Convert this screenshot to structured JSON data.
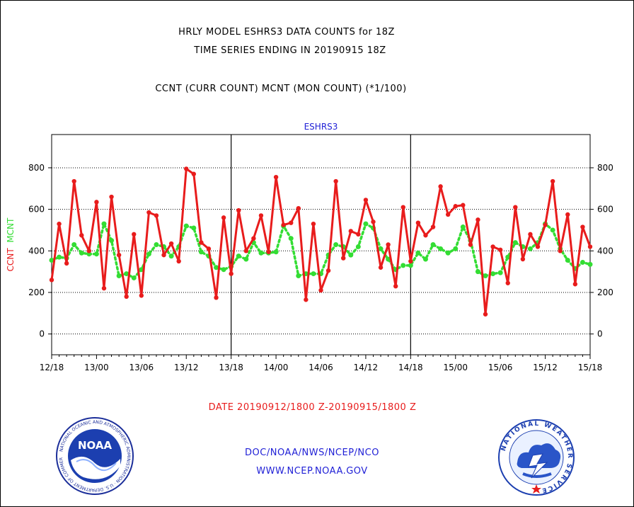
{
  "header": {
    "title_line1": "HRLY MODEL ESHRS3 DATA COUNTS for 18Z",
    "title_line2": "TIME SERIES ENDING IN 20190915 18Z",
    "subtitle": "CCNT (CURR COUNT) MCNT (MON COUNT) (*1/100)"
  },
  "chart_data": {
    "type": "line",
    "title": "ESHRS3",
    "ylabel_left": "CCNT",
    "ylabel_right": "MCNT",
    "xlabel": "DATE 20190912/1800 Z-20190915/1800 Z",
    "ylim": [
      -100,
      960
    ],
    "yticks": [
      0,
      200,
      400,
      600,
      800
    ],
    "xlim": [
      0,
      72
    ],
    "xticks": [
      {
        "x": 0,
        "label": "12/18"
      },
      {
        "x": 6,
        "label": "13/00"
      },
      {
        "x": 12,
        "label": "13/06"
      },
      {
        "x": 18,
        "label": "13/12"
      },
      {
        "x": 24,
        "label": "13/18"
      },
      {
        "x": 30,
        "label": "14/00"
      },
      {
        "x": 36,
        "label": "14/06"
      },
      {
        "x": 42,
        "label": "14/12"
      },
      {
        "x": 48,
        "label": "14/18"
      },
      {
        "x": 54,
        "label": "15/00"
      },
      {
        "x": 60,
        "label": "15/06"
      },
      {
        "x": 66,
        "label": "15/12"
      },
      {
        "x": 72,
        "label": "15/18"
      }
    ],
    "day_dividers": [
      24,
      48
    ],
    "series": [
      {
        "name": "CCNT",
        "color": "#e81c1c",
        "style": "solid",
        "values": [
          260,
          530,
          340,
          735,
          475,
          400,
          635,
          220,
          660,
          380,
          180,
          480,
          185,
          585,
          570,
          380,
          435,
          350,
          795,
          770,
          440,
          410,
          175,
          560,
          290,
          595,
          400,
          460,
          570,
          395,
          755,
          525,
          535,
          605,
          165,
          530,
          210,
          305,
          735,
          365,
          495,
          480,
          645,
          540,
          320,
          430,
          230,
          610,
          350,
          535,
          475,
          515,
          710,
          575,
          615,
          620,
          430,
          550,
          95,
          420,
          405,
          245,
          610,
          360,
          480,
          420,
          525,
          735,
          400,
          575,
          240,
          515,
          420
        ]
      },
      {
        "name": "MCNT",
        "color": "#33dd33",
        "style": "dotted",
        "values": [
          355,
          370,
          365,
          430,
          390,
          385,
          385,
          530,
          450,
          280,
          290,
          270,
          310,
          385,
          430,
          420,
          375,
          420,
          520,
          510,
          395,
          375,
          320,
          310,
          325,
          375,
          360,
          440,
          390,
          390,
          395,
          520,
          460,
          280,
          290,
          290,
          290,
          380,
          430,
          420,
          380,
          420,
          530,
          510,
          410,
          360,
          310,
          330,
          330,
          390,
          360,
          430,
          410,
          390,
          410,
          515,
          450,
          300,
          280,
          290,
          295,
          370,
          440,
          420,
          410,
          440,
          530,
          500,
          410,
          355,
          315,
          345,
          335
        ]
      }
    ]
  },
  "footer": {
    "org_line": "DOC/NOAA/NWS/NCEP/NCO",
    "url_line": "WWW.NCEP.NOAA.GOV",
    "noaa_logo_text": "NOAA",
    "noaa_ring_text": "NATIONAL OCEANIC AND ATMOSPHERIC ADMINISTRATION · U.S. DEPARTMENT OF COMMERCE",
    "nws_ring_text": "NATIONAL WEATHER SERVICE"
  }
}
